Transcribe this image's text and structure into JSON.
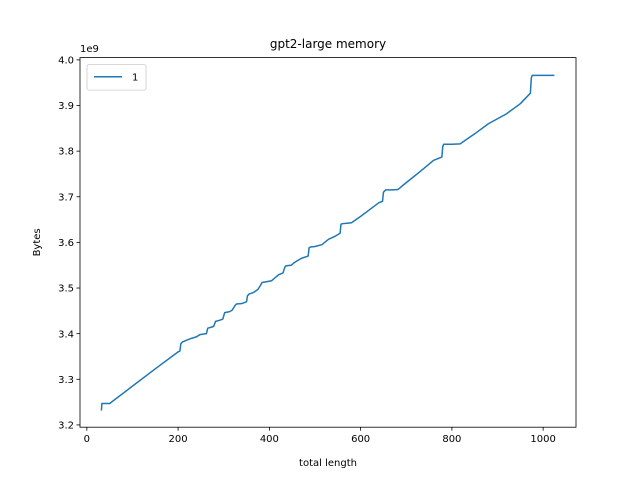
{
  "chart_data": {
    "type": "line",
    "title": "gpt2-large memory",
    "xlabel": "total length",
    "ylabel": "Bytes",
    "y_offset_label": "1e9",
    "xlim": [
      -15,
      1072
    ],
    "ylim": [
      3.195,
      4.005
    ],
    "x_ticks": [
      0,
      200,
      400,
      600,
      800,
      1000
    ],
    "y_ticks": [
      3.2,
      3.3,
      3.4,
      3.5,
      3.6,
      3.7,
      3.8,
      3.9,
      4.0
    ],
    "y_tick_labels": [
      "3.2",
      "3.3",
      "3.4",
      "3.5",
      "3.6",
      "3.7",
      "3.8",
      "3.9",
      "4.0"
    ],
    "legend": {
      "position": "upper-left",
      "entries": [
        "1"
      ]
    },
    "series": [
      {
        "name": "1",
        "color": "#1f77b4",
        "x": [
          32,
          33,
          40,
          50,
          100,
          150,
          200,
          204,
          206,
          210,
          215,
          222,
          230,
          240,
          248,
          255,
          262,
          265,
          272,
          278,
          282,
          290,
          298,
          302,
          312,
          318,
          325,
          328,
          340,
          350,
          352,
          356,
          365,
          375,
          380,
          384,
          395,
          405,
          412,
          420,
          430,
          432,
          435,
          440,
          448,
          455,
          470,
          485,
          487,
          490,
          500,
          515,
          530,
          545,
          555,
          557,
          560,
          570,
          580,
          600,
          620,
          640,
          648,
          650,
          655,
          670,
          682,
          700,
          730,
          760,
          778,
          780,
          782,
          800,
          818,
          850,
          880,
          920,
          950,
          972,
          974,
          976,
          985,
          1000,
          1023
        ],
        "y": [
          3.233,
          3.247,
          3.247,
          3.247,
          3.285,
          3.323,
          3.36,
          3.362,
          3.378,
          3.382,
          3.384,
          3.387,
          3.39,
          3.393,
          3.398,
          3.399,
          3.4,
          3.412,
          3.414,
          3.416,
          3.427,
          3.429,
          3.432,
          3.446,
          3.448,
          3.451,
          3.462,
          3.465,
          3.466,
          3.47,
          3.483,
          3.487,
          3.49,
          3.497,
          3.505,
          3.512,
          3.514,
          3.516,
          3.522,
          3.529,
          3.533,
          3.54,
          3.548,
          3.549,
          3.55,
          3.556,
          3.565,
          3.57,
          3.588,
          3.59,
          3.591,
          3.595,
          3.607,
          3.614,
          3.62,
          3.64,
          3.641,
          3.642,
          3.643,
          3.657,
          3.672,
          3.687,
          3.69,
          3.71,
          3.715,
          3.715,
          3.716,
          3.731,
          3.755,
          3.78,
          3.787,
          3.81,
          3.815,
          3.815,
          3.816,
          3.838,
          3.86,
          3.882,
          3.904,
          3.927,
          3.96,
          3.966,
          3.966,
          3.966,
          3.966
        ]
      }
    ]
  }
}
